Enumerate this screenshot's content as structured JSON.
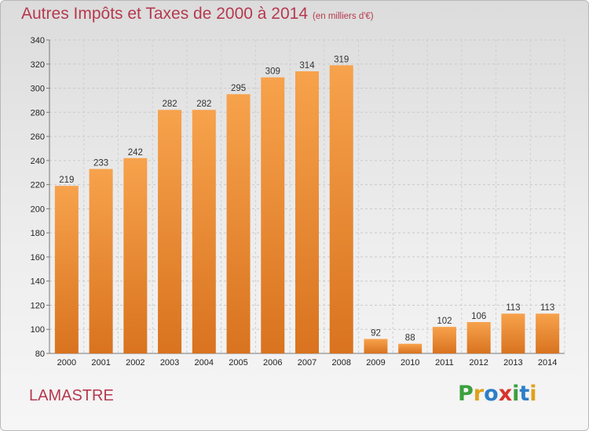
{
  "chart_data": {
    "type": "bar",
    "title": "Autres Impôts et Taxes de 2000 à 2014",
    "subtitle": "(en milliers d'€)",
    "categories": [
      "2000",
      "2001",
      "2002",
      "2003",
      "2004",
      "2005",
      "2006",
      "2007",
      "2008",
      "2009",
      "2010",
      "2011",
      "2012",
      "2013",
      "2014"
    ],
    "values": [
      219,
      233,
      242,
      282,
      282,
      295,
      309,
      314,
      319,
      92,
      88,
      102,
      106,
      113,
      113
    ],
    "ylim": [
      80,
      340
    ],
    "yticks": [
      80,
      100,
      120,
      140,
      160,
      180,
      200,
      220,
      240,
      260,
      280,
      300,
      320,
      340
    ],
    "xlabel": "",
    "ylabel": "",
    "grid": true,
    "bar_color_top": "#f7a24c",
    "bar_color_bottom": "#d9731f"
  },
  "place_name": "LAMASTRE",
  "brand": {
    "letters": [
      "P",
      "r",
      "o",
      "x",
      "i",
      "t",
      "i"
    ],
    "colors": [
      "#3aa03f",
      "#e0a21b",
      "#2d7fc9",
      "#d8342c",
      "#3aa03f",
      "#2d7fc9",
      "#e0a21b"
    ]
  }
}
